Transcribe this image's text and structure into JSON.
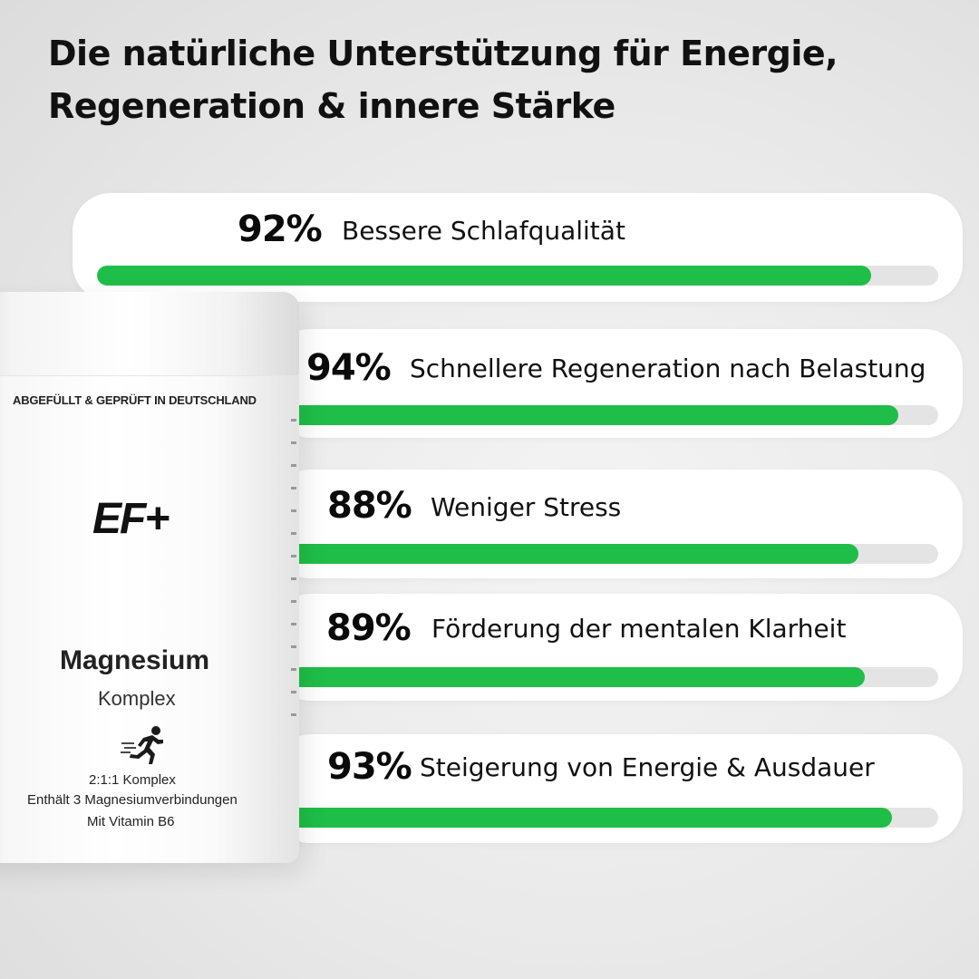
{
  "headline": {
    "line1": "Die natürliche Unterstützung für Energie,",
    "line2": "Regeneration & innere Stärke"
  },
  "stats": [
    {
      "percent_label": "92%",
      "value": 0.92,
      "label": "Bessere Schlafqualität"
    },
    {
      "percent_label": "94%",
      "value": 0.94,
      "label": "Schnellere Regeneration nach Belastung"
    },
    {
      "percent_label": "88%",
      "value": 0.88,
      "label": "Weniger Stress"
    },
    {
      "percent_label": "89%",
      "value": 0.89,
      "label": "Förderung der mentalen Klarheit"
    },
    {
      "percent_label": "93%",
      "value": 0.93,
      "label": "Steigerung von Energie & Ausdauer"
    }
  ],
  "colors": {
    "bar_fill": "#1fbe48",
    "bar_track": "#e4e4e4"
  },
  "product": {
    "made_in": "ABGEFÜLLT & GEPRÜFT IN DEUTSCHLAND",
    "brand": "EF+",
    "name": "Magnesium",
    "subname": "Komplex",
    "icon": "runner-icon",
    "detail1": "2:1:1 Komplex",
    "detail2": "Enthält 3 Magnesiumverbindungen",
    "detail3": "Mit Vitamin B6"
  }
}
